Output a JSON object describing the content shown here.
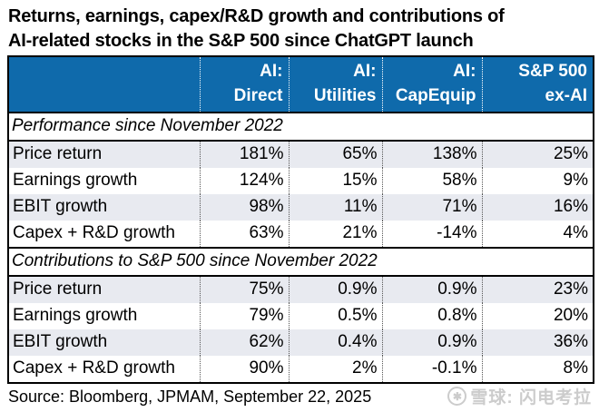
{
  "title": {
    "line1": "Returns, earnings, capex/R&D growth and contributions of",
    "line2": "AI-related stocks in the S&P 500 since ChatGPT launch"
  },
  "header": {
    "cols": [
      {
        "line1": "AI:",
        "line2": "Direct"
      },
      {
        "line1": "AI:",
        "line2": "Utilities"
      },
      {
        "line1": "AI:",
        "line2": "CapEquip"
      },
      {
        "line1": "S&P 500",
        "line2": "ex-AI"
      }
    ]
  },
  "chart_data": {
    "type": "table",
    "title": "Returns, earnings, capex/R&D growth and contributions of AI-related stocks in the S&P 500 since ChatGPT launch",
    "columns": [
      "AI: Direct",
      "AI: Utilities",
      "AI: CapEquip",
      "S&P 500 ex-AI"
    ],
    "sections": [
      {
        "heading": "Performance since November 2022",
        "rows": [
          {
            "label": "Price return",
            "values": [
              "181%",
              "65%",
              "138%",
              "25%"
            ]
          },
          {
            "label": "Earnings growth",
            "values": [
              "124%",
              "15%",
              "58%",
              "9%"
            ]
          },
          {
            "label": "EBIT growth",
            "values": [
              "98%",
              "11%",
              "71%",
              "16%"
            ]
          },
          {
            "label": "Capex + R&D growth",
            "values": [
              "63%",
              "21%",
              "-14%",
              "4%"
            ]
          }
        ]
      },
      {
        "heading": "Contributions to S&P 500 since November 2022",
        "rows": [
          {
            "label": "Price return",
            "values": [
              "75%",
              "0.9%",
              "0.9%",
              "23%"
            ]
          },
          {
            "label": "Earnings growth",
            "values": [
              "79%",
              "0.5%",
              "0.8%",
              "20%"
            ]
          },
          {
            "label": "EBIT growth",
            "values": [
              "62%",
              "0.4%",
              "0.9%",
              "36%"
            ]
          },
          {
            "label": "Capex + R&D growth",
            "values": [
              "90%",
              "2%",
              "-0.1%",
              "8%"
            ]
          }
        ]
      }
    ]
  },
  "source": "Source: Bloomberg, JPMAM, September 22, 2025",
  "watermark": {
    "icon": "xueqiu-logo",
    "text": "雪球: 闪电考拉"
  },
  "colors": {
    "header_bg": "#0f6aab",
    "header_text": "#ffffff",
    "stripe": "#e8eaf0",
    "border": "#000000",
    "watermark": "#cccccc"
  }
}
